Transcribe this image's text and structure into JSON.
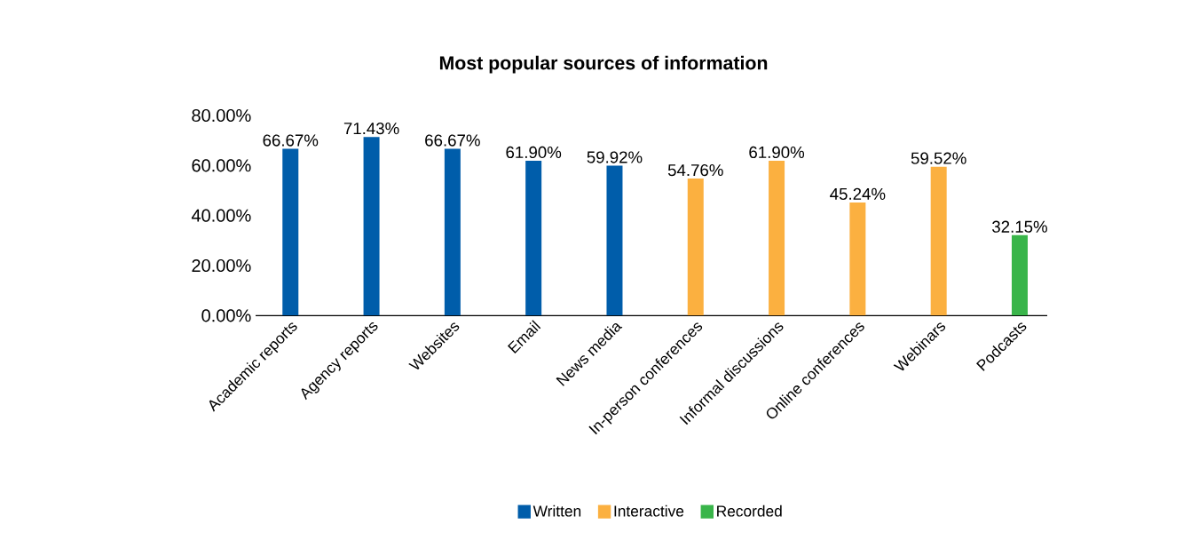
{
  "chart_data": {
    "type": "bar",
    "title": "Most popular sources of information",
    "categories": [
      "Academic reports",
      "Agency reports",
      "Websites",
      "Email",
      "News media",
      "In-person conferences",
      "Informal discussions",
      "Online conferences",
      "Webinars",
      "Podcasts"
    ],
    "series": [
      {
        "name": "Written",
        "color": "#005daa",
        "values": [
          66.67,
          71.43,
          66.67,
          61.9,
          59.92,
          null,
          null,
          null,
          null,
          null
        ],
        "value_labels": [
          "66.67%",
          "71.43%",
          "66.67%",
          "61.90%",
          "59.92%",
          null,
          null,
          null,
          null,
          null
        ]
      },
      {
        "name": "Interactive",
        "color": "#fbb040",
        "values": [
          null,
          null,
          null,
          null,
          null,
          54.76,
          61.9,
          45.24,
          59.52,
          null
        ],
        "value_labels": [
          null,
          null,
          null,
          null,
          null,
          "54.76%",
          "61.90%",
          "45.24%",
          "59.52%",
          null
        ]
      },
      {
        "name": "Recorded",
        "color": "#39b54a",
        "values": [
          null,
          null,
          null,
          null,
          null,
          null,
          null,
          null,
          null,
          32.15
        ],
        "value_labels": [
          null,
          null,
          null,
          null,
          null,
          null,
          null,
          null,
          null,
          "32.15%"
        ]
      }
    ],
    "ylim": [
      0,
      80
    ],
    "yticks": [
      {
        "value": 0,
        "label": "0.00%"
      },
      {
        "value": 20,
        "label": "20.00%"
      },
      {
        "value": 40,
        "label": "40.00%"
      },
      {
        "value": 60,
        "label": "60.00%"
      },
      {
        "value": 80,
        "label": "80.00%"
      }
    ],
    "grid": false,
    "legend": "bottom"
  }
}
